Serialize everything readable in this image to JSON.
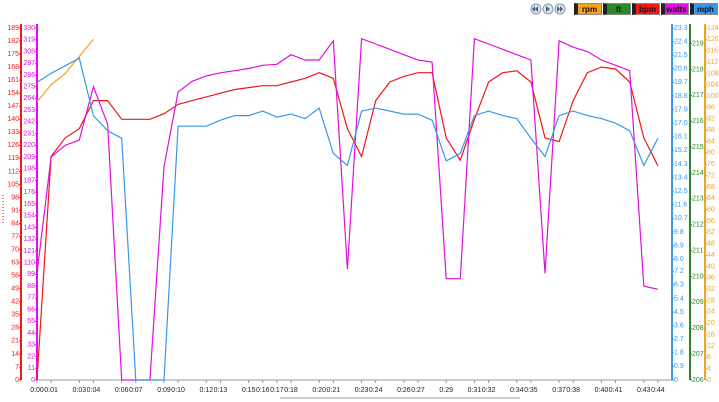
{
  "chart_data": {
    "type": "line",
    "x": [
      0,
      1,
      2,
      3,
      4,
      5,
      6,
      7,
      8,
      9,
      10,
      11,
      12,
      13,
      14,
      15,
      16,
      17,
      18,
      19,
      20,
      21,
      22,
      23,
      24,
      25,
      26,
      27,
      28,
      29,
      30,
      31,
      32,
      33,
      34,
      35,
      36,
      37,
      38,
      39,
      40,
      41,
      42,
      43,
      44
    ],
    "xlim": [
      0,
      45
    ],
    "xticks": [
      {
        "value": 0,
        "label": "0:00"
      },
      {
        "value": 1,
        "label": "0:01"
      },
      {
        "value": 3,
        "label": "0:03"
      },
      {
        "value": 4,
        "label": "0:04"
      },
      {
        "value": 6,
        "label": "0:06"
      },
      {
        "value": 7,
        "label": "0:07"
      },
      {
        "value": 9,
        "label": "0:09"
      },
      {
        "value": 10,
        "label": "0:10"
      },
      {
        "value": 12,
        "label": "0:12"
      },
      {
        "value": 13,
        "label": "0:13"
      },
      {
        "value": 15,
        "label": "0:15"
      },
      {
        "value": 16,
        "label": "0:16"
      },
      {
        "value": 17,
        "label": "0:17"
      },
      {
        "value": 18,
        "label": "0:18"
      },
      {
        "value": 20,
        "label": "0:20"
      },
      {
        "value": 21,
        "label": "0:21"
      },
      {
        "value": 23,
        "label": "0:23"
      },
      {
        "value": 24,
        "label": "0:24"
      },
      {
        "value": 26,
        "label": "0:26"
      },
      {
        "value": 27,
        "label": "0:27"
      },
      {
        "value": 29,
        "label": "0:29"
      },
      {
        "value": 31,
        "label": "0:31"
      },
      {
        "value": 32,
        "label": "0:32"
      },
      {
        "value": 34,
        "label": "0:34"
      },
      {
        "value": 35,
        "label": "0:35"
      },
      {
        "value": 37,
        "label": "0:37"
      },
      {
        "value": 38,
        "label": "0:38"
      },
      {
        "value": 40,
        "label": "0:40"
      },
      {
        "value": 41,
        "label": "0:41"
      },
      {
        "value": 43,
        "label": "0:43"
      },
      {
        "value": 44,
        "label": "0:44"
      }
    ],
    "axes": {
      "bpm": {
        "lim": [
          0,
          189
        ],
        "color": "#f01818",
        "ticks": [
          0,
          7,
          14,
          21,
          28,
          35,
          42,
          49,
          56,
          63,
          70,
          77,
          84,
          91,
          98,
          105,
          112,
          119,
          126,
          133,
          140,
          147,
          154,
          161,
          168,
          175,
          182,
          189
        ]
      },
      "watts": {
        "lim": [
          0,
          330
        ],
        "color": "#e010e0",
        "ticks": [
          0,
          11,
          22,
          33,
          44,
          55,
          66,
          77,
          88,
          99,
          110,
          121,
          132,
          143,
          154,
          165,
          176,
          187,
          198,
          209,
          220,
          231,
          242,
          253,
          264,
          275,
          286,
          297,
          308,
          319,
          330
        ]
      },
      "mph": {
        "lim": [
          0,
          23.3
        ],
        "color": "#3a96e8",
        "ticks": [
          0,
          0.9,
          1.8,
          2.7,
          3.6,
          4.5,
          5.4,
          6.3,
          7.2,
          {
            "value": 8,
            "label": "8.0"
          },
          8.9,
          9.8,
          10.7,
          11.6,
          12.5,
          13.4,
          14.3,
          15.2,
          16.1,
          {
            "value": 17,
            "label": "17.0"
          },
          17.9,
          18.8,
          19.7,
          20.6,
          21.5,
          22.4,
          23.3
        ]
      },
      "ft": {
        "lim": [
          206,
          219.6
        ],
        "color": "#2a8a2a",
        "ticks": [
          206,
          207,
          208,
          209,
          210,
          211,
          212,
          213,
          214,
          215,
          216,
          217,
          218,
          219
        ]
      },
      "rpm": {
        "lim": [
          0,
          124
        ],
        "color": "#f5a020",
        "ticks": [
          0,
          4,
          8,
          12,
          16,
          20,
          24,
          28,
          32,
          36,
          40,
          44,
          48,
          52,
          56,
          60,
          64,
          68,
          72,
          76,
          80,
          84,
          88,
          92,
          96,
          100,
          104,
          108,
          112,
          116,
          120,
          124
        ]
      }
    },
    "series": [
      {
        "name": "rpm",
        "axis": "rpm",
        "color": "#f5a020",
        "values": [
          98,
          104,
          108,
          114,
          120,
          null,
          null,
          null,
          null,
          null,
          null,
          null,
          null,
          null,
          null,
          null,
          null,
          null,
          null,
          null,
          null,
          null,
          null,
          null,
          null,
          null,
          null,
          null,
          null,
          null,
          null,
          null,
          null,
          null,
          null,
          null,
          null,
          null,
          null,
          null,
          null,
          null,
          null,
          null,
          null
        ]
      },
      {
        "name": "ft",
        "axis": "ft",
        "color": "#2a8a2a",
        "values": [
          null,
          null,
          null,
          null,
          null,
          null,
          null,
          null,
          null,
          null,
          null,
          null,
          null,
          null,
          null,
          null,
          null,
          null,
          null,
          null,
          null,
          null,
          null,
          null,
          null,
          null,
          null,
          null,
          null,
          null,
          null,
          null,
          null,
          null,
          null,
          null,
          null,
          null,
          null,
          null,
          null,
          null,
          null,
          null,
          null
        ]
      },
      {
        "name": "bpm",
        "axis": "bpm",
        "color": "#f01818",
        "values": [
          0,
          120,
          130,
          135,
          150,
          150,
          140,
          140,
          140,
          143,
          148,
          150,
          152,
          154,
          156,
          157,
          158,
          158,
          160,
          162,
          165,
          162,
          135,
          120,
          150,
          160,
          163,
          165,
          165,
          130,
          118,
          140,
          160,
          165,
          166,
          160,
          130,
          128,
          150,
          165,
          168,
          167,
          160,
          130,
          115
        ]
      },
      {
        "name": "watts",
        "axis": "watts",
        "color": "#e010e0",
        "values": [
          100,
          209,
          220,
          225,
          275,
          240,
          0,
          0,
          0,
          200,
          270,
          280,
          285,
          288,
          290,
          292,
          295,
          296,
          305,
          300,
          300,
          318,
          104,
          320,
          315,
          310,
          305,
          300,
          298,
          95,
          95,
          320,
          315,
          310,
          305,
          300,
          100,
          318,
          312,
          308,
          300,
          295,
          290,
          88,
          85
        ]
      },
      {
        "name": "mph",
        "axis": "mph",
        "color": "#3a96e8",
        "values": [
          19.7,
          20.3,
          20.8,
          21.3,
          17.5,
          16.5,
          16,
          0,
          0,
          0,
          16.8,
          16.8,
          16.8,
          17.2,
          17.5,
          17.5,
          17.8,
          17.4,
          17.6,
          17.3,
          18,
          15,
          14.2,
          17.8,
          18,
          17.8,
          17.6,
          17.6,
          17.2,
          14.5,
          15,
          17.5,
          17.8,
          17.5,
          17.3,
          16,
          14.8,
          17.5,
          17.8,
          17.5,
          17.3,
          17,
          16.5,
          14.2,
          16
        ]
      }
    ]
  }
}
